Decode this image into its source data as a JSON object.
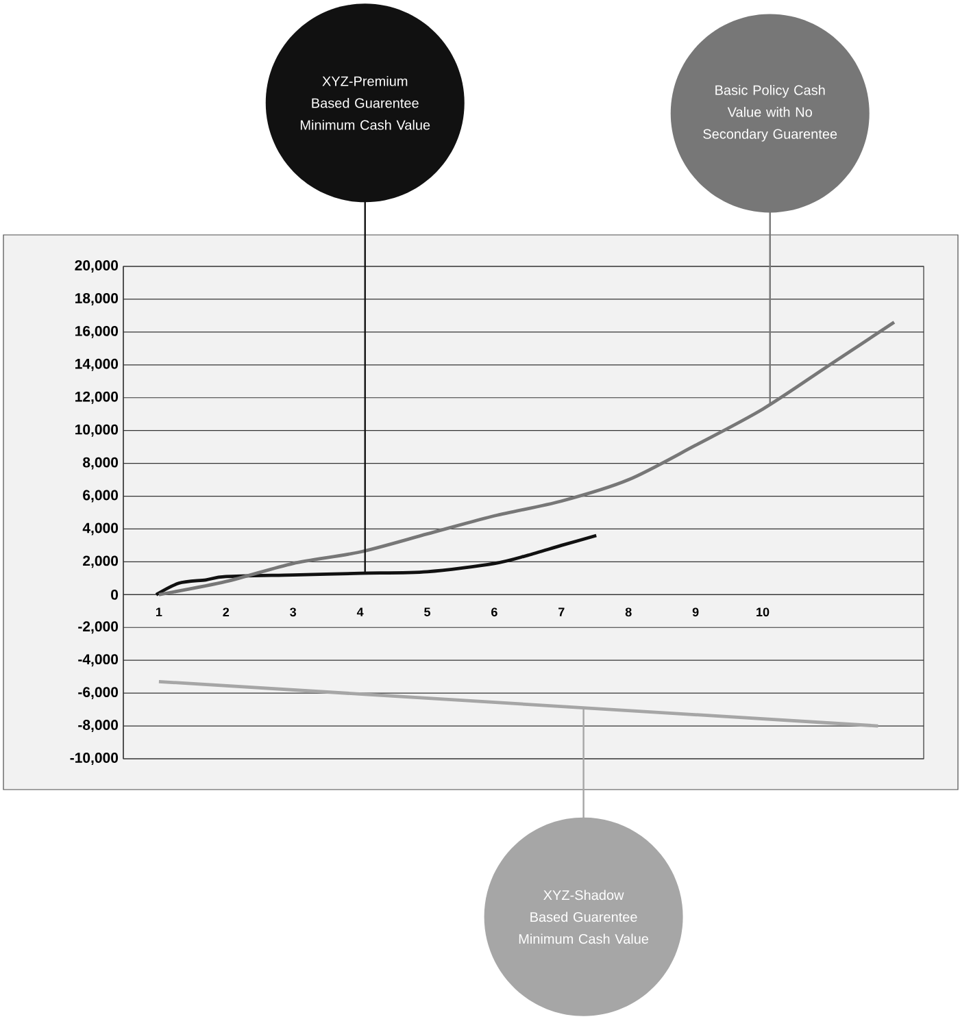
{
  "chart_data": {
    "type": "line",
    "xlim": [
      0.47,
      12.4
    ],
    "xticks": [
      1,
      2,
      3,
      4,
      5,
      6,
      7,
      8,
      9,
      10
    ],
    "ylim": [
      -10000,
      20000
    ],
    "yticks": [
      {
        "value": -10000,
        "label": "-10,000"
      },
      {
        "value": -8000,
        "label": "-8,000"
      },
      {
        "value": -6000,
        "label": "-6,000"
      },
      {
        "value": -4000,
        "label": "-4,000"
      },
      {
        "value": -2000,
        "label": "-2,000"
      },
      0,
      {
        "value": 2000,
        "label": "2,000"
      },
      {
        "value": 4000,
        "label": "4,000"
      },
      {
        "value": 6000,
        "label": "6,000"
      },
      {
        "value": 8000,
        "label": "8,000"
      },
      {
        "value": 10000,
        "label": "10,000"
      },
      {
        "value": 12000,
        "label": "12,000"
      },
      {
        "value": 14000,
        "label": "14,000"
      },
      {
        "value": 16000,
        "label": "16,000"
      },
      {
        "value": 18000,
        "label": "18,000"
      },
      {
        "value": 20000,
        "label": "20,000"
      }
    ],
    "grid": "y",
    "legend": false,
    "marker": "none",
    "line_style": "solid",
    "series": [
      {
        "name": "XYZ-Premium Based Guarentee Minimum Cash Value",
        "color": "#111111",
        "x": [
          0.96,
          1.3,
          1.7,
          2,
          3,
          4,
          5,
          6,
          6.5,
          7,
          7.52
        ],
        "values": [
          0,
          700,
          900,
          1100,
          1200,
          1300,
          1400,
          1900,
          2400,
          3000,
          3600
        ]
      },
      {
        "name": "Basic Policy Cash Value with No Secondary Guarentee",
        "color": "#777777",
        "x": [
          1,
          2,
          3,
          4,
          5,
          6,
          7,
          8,
          9,
          10,
          11,
          11.96
        ],
        "values": [
          0,
          800,
          1900,
          2600,
          3700,
          4800,
          5700,
          7000,
          9100,
          11300,
          14000,
          16600
        ]
      },
      {
        "name": "XYZ-Shadow Based Guarentee Minimum Cash Value",
        "color": "#a6a6a6",
        "x": [
          1,
          11.72
        ],
        "values": [
          -5300,
          -8000
        ]
      }
    ]
  }
}
